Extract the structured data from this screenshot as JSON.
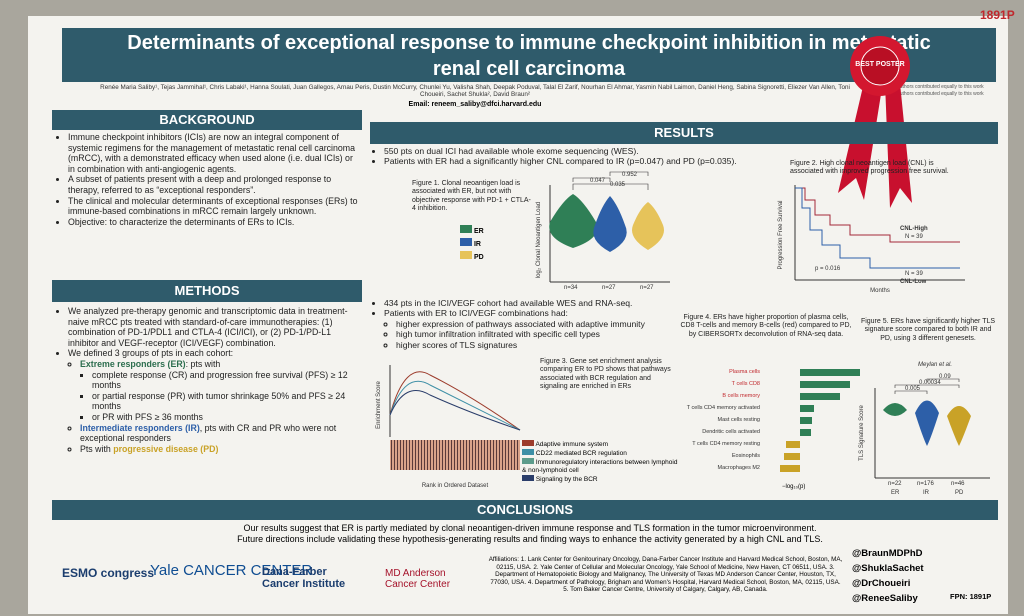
{
  "header": {
    "title": "Determinants of exceptional response to immune checkpoint inhibition in metastatic renal cell carcinoma",
    "authors": "Renée Maria Saliby¹, Tejas Jammihal¹, Chris Labaki¹, Hanna Soulati, Juan Gallegos, Arnau Peris, Dustin McCurry, Chunlei Yu, Valisha Shah, Deepak Poduval, Talal El Zarif, Nourhan El Ahmar, Yasmin Nabil Laimon, Daniel Heng, Sabina Signoretti, Eliezer Van Allen, Toni Choueiri, Sachet Shukla², David Braun²",
    "email": "Email: reneem_saliby@dfci.harvard.edu",
    "notes": [
      "¹These authors contributed equally to this work",
      "²These authors contributed equally to this work"
    ],
    "badge": "1891P",
    "ribbon": "BEST POSTER"
  },
  "background": {
    "heading": "BACKGROUND",
    "bullets": [
      "Immune checkpoint inhibitors (ICIs) are now an integral component of systemic regimens for the management of metastatic renal cell carcinoma (mRCC), with a demonstrated efficacy when used alone (i.e. dual ICIs) or in combination with anti-angiogenic agents.",
      "A subset of patients present with a deep and prolonged response to therapy, referred to as “exceptional responders”.",
      "The clinical and molecular determinants of exceptional responses (ERs) to immune-based combinations in mRCC remain largely unknown.",
      "Objective: to characterize the determinants of ERs to ICIs."
    ]
  },
  "methods": {
    "heading": "METHODS",
    "bullets": [
      "We analyzed pre-therapy genomic and transcriptomic data in treatment-naive mRCC pts treated with standard-of-care immunotherapies: (1) combination of PD-1/PDL1 and CTLA-4 (ICI/ICI), or (2) PD-1/PD-L1 inhibitor and VEGF-receptor (ICI/VEGF) combination.",
      "We defined 3 groups of pts in each cohort:"
    ],
    "groups": [
      {
        "name": "Extreme responders (ER)",
        "text": ": pts with"
      },
      {
        "name": "Intermediate responders (IR)",
        "text": ", pts with CR and PR who were not exceptional responders"
      },
      {
        "name": "progressive disease (PD)",
        "text": "Pts with "
      }
    ],
    "criteria": [
      "complete response (CR) and progression free survival (PFS) ≥ 12 months",
      "or partial response (PR) with tumor shrinkage 50% and PFS ≥ 24 months",
      "or PR with PFS ≥ 36 months"
    ]
  },
  "results": {
    "heading": "RESULTS",
    "bullets1": [
      "550 pts on dual ICI had available whole exome sequencing (WES).",
      "Patients with ER had a significantly higher CNL compared to IR (p=0.047) and PD (p=0.035)."
    ],
    "bullets2": [
      "434 pts in the ICI/VEGF cohort had available WES and RNA-seq.",
      "Patients with ER to ICI/VEGF combinations had:"
    ],
    "sub": [
      "higher expression of pathways associated with adaptive immunity",
      "high tumor infiltration infiltrated with specific cell types",
      "higher scores of TLS signatures"
    ],
    "fig1": {
      "caption": "Figure 1. Clonal neoantigen load is associated with ER, but not with objective response with PD-1 + CTLA-4 inhibition.",
      "ylabel": "log₂ Clonal Neoantigen Load",
      "legend": [
        "ER",
        "IR",
        "PD"
      ],
      "p": [
        "0.047",
        "0.035",
        "0.952"
      ],
      "n": [
        "n=34",
        "n=27",
        "n=27"
      ]
    },
    "fig2": {
      "caption": "Figure 2. High clonal neoantigen load (CNL) is associated with improved progression free survival.",
      "ylabel": "Progression Free Survival",
      "xlabel": "Months",
      "high": "CNL-High",
      "low": "CNL-Low",
      "nhigh": "N = 39",
      "nlow": "N = 39",
      "p": "p = 0.016"
    },
    "fig3": {
      "caption": "Figure 3. Gene set enrichment analysis comparing ER to PD shows that pathways associated with BCR regulation and signaling are enriched in ERs",
      "ylabel": "Enrichment Score",
      "xlabel": "Rank in Ordered Dataset",
      "legend": [
        "Adaptive immune system",
        "CD22 mediated BCR regulation",
        "Immunoregulatory interactions between lymphoid & non-lymphoid cell",
        "Signaling by the BCR"
      ]
    },
    "fig4": {
      "caption": "Figure 4. ERs have higher proportion of plasma cells, CD8 T-cells and memory B-cells (red) compared to PD, by CIBERSORTx deconvolution of RNA-seq data.",
      "cells": [
        "Plasma cells",
        "T cells CD8",
        "B cells memory",
        "T cells CD4 memory activated",
        "Mast cells resting",
        "Dendritic cells activated",
        "T cells CD4 memory resting",
        "Eosinophils",
        "Macrophages M2"
      ],
      "xlabel": "−log₁₀(p)"
    },
    "fig5": {
      "caption": "Figure 5. ERs have significantly higher TLS signature score compared to both IR and PD, using 3 different genesets.",
      "sub": "Meylan et al.",
      "ylabel": "TLS Signature Score",
      "p": [
        "0.005",
        "0.00034",
        "0.09"
      ],
      "n": [
        "n=22",
        "n=176",
        "n=46"
      ],
      "groups": [
        "ER",
        "IR",
        "PD"
      ]
    }
  },
  "conclusions": {
    "heading": "CONCLUSIONS",
    "text": [
      "Our results suggest that ER is partly mediated by clonal neoantigen-driven immune response and TLS formation in the tumor microenvironment.",
      "Future directions include validating these hypothesis-generating results and finding ways to enhance the activity generated by a high CNL and TLS."
    ]
  },
  "footer": {
    "logos": [
      "ESMO congress",
      "Yale CANCER CENTER",
      "Dana-Farber Cancer Institute",
      "MD Anderson Cancer Center"
    ],
    "affiliations": "Affiliations: 1. Lank Center for Genitourinary Oncology, Dana-Farber Cancer Institute and Harvard Medical School, Boston, MA, 02115, USA. 2. Yale Center of Cellular and Molecular Oncology, Yale School of Medicine, New Haven, CT 06511, USA. 3. Department of Hematopoietic Biology and Malignancy, The University of Texas MD Anderson Cancer Center, Houston, TX, 77030, USA. 4. Department of Pathology, Brigham and Women's Hospital, Harvard Medical School, Boston, MA, 02115, USA. 5. Tom Baker Cancer Centre, University of Calgary, Calgary, AB, Canada.",
    "handles": [
      "@BraunMDPhD",
      "@ShuklaSachet",
      "@DrChoueiri",
      "@ReneeSaliby"
    ],
    "fpn": "FPN: 1891P"
  }
}
